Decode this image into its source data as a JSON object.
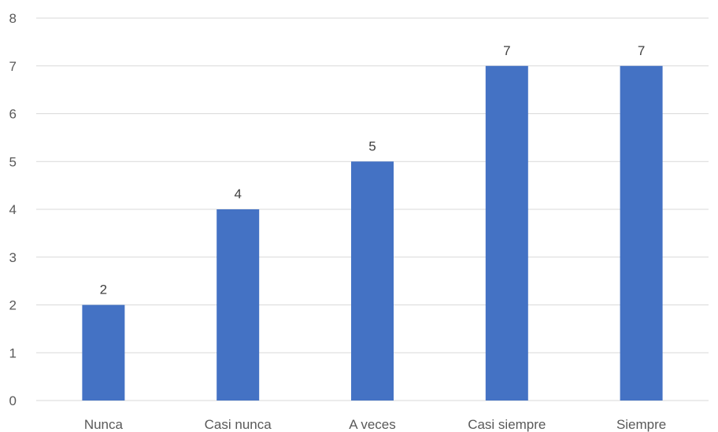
{
  "chart_data": {
    "type": "bar",
    "categories": [
      "Nunca",
      "Casi nunca",
      "A veces",
      "Casi siempre",
      "Siempre"
    ],
    "values": [
      2,
      4,
      5,
      7,
      7
    ],
    "data_labels": [
      "2",
      "4",
      "5",
      "7",
      "7"
    ],
    "title": "",
    "xlabel": "",
    "ylabel": "",
    "ylim": [
      0,
      8
    ],
    "yticks": [
      "0",
      "1",
      "2",
      "3",
      "4",
      "5",
      "6",
      "7",
      "8"
    ],
    "grid": true,
    "legend": "none",
    "colors": {
      "bar": "#4472C4",
      "grid": "#D9D9D9",
      "tick_text": "#595959",
      "label_text": "#404040"
    }
  }
}
